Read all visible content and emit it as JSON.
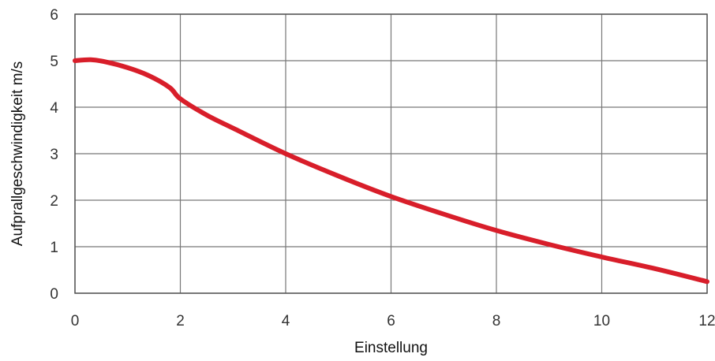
{
  "chart_data": {
    "type": "line",
    "xlabel": "Einstellung",
    "ylabel": "Aufprallgeschwindigkeit m/s",
    "xlim": [
      0,
      12
    ],
    "ylim": [
      0,
      6
    ],
    "x_ticks": [
      "0",
      "2",
      "4",
      "6",
      "8",
      "10",
      "12"
    ],
    "y_ticks": [
      "0",
      "1",
      "2",
      "3",
      "4",
      "5",
      "6"
    ],
    "grid": true,
    "line_color": "#d81e2a",
    "series": [
      {
        "x": [
          0,
          0.3,
          0.6,
          1.0,
          1.4,
          1.8,
          2.0,
          2.5,
          3.0,
          4.0,
          5.0,
          6.0,
          7.0,
          8.0,
          9.0,
          10.0,
          11.0,
          12.0
        ],
        "values": [
          5.0,
          5.02,
          4.97,
          4.85,
          4.68,
          4.42,
          4.18,
          3.83,
          3.55,
          3.0,
          2.52,
          2.08,
          1.7,
          1.35,
          1.05,
          0.78,
          0.53,
          0.25
        ]
      }
    ]
  }
}
